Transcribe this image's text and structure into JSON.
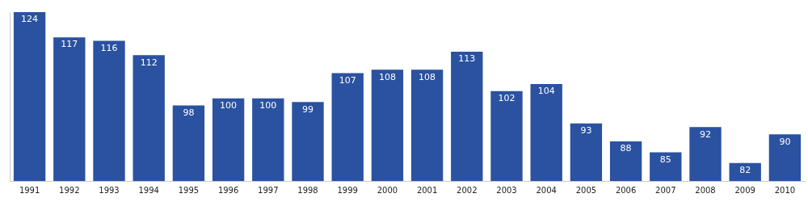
{
  "chart_data": {
    "type": "bar",
    "categories": [
      "1991",
      "1992",
      "1993",
      "1994",
      "1995",
      "1996",
      "1997",
      "1998",
      "1999",
      "2000",
      "2001",
      "2002",
      "2003",
      "2004",
      "2005",
      "2006",
      "2007",
      "2008",
      "2009",
      "2010"
    ],
    "values": [
      124,
      117,
      116,
      112,
      98,
      100,
      100,
      99,
      107,
      108,
      108,
      113,
      102,
      104,
      93,
      88,
      85,
      92,
      82,
      90
    ],
    "color": "#2a52a0",
    "ylim": [
      77,
      124
    ],
    "yticks": [],
    "grid": false,
    "data_labels": true,
    "tick_labels": "x"
  }
}
